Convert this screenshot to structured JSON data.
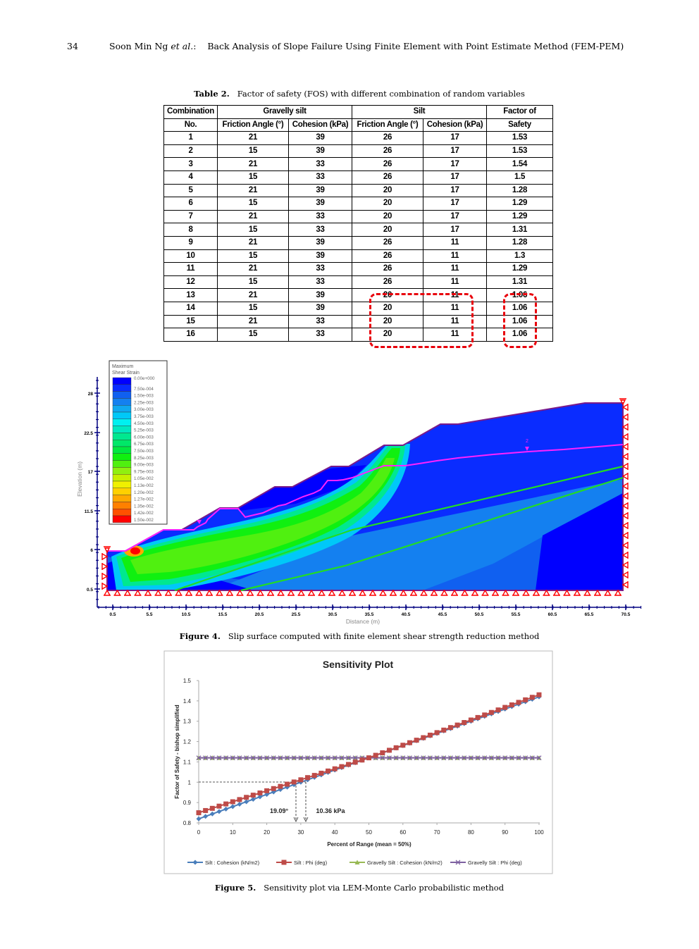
{
  "header": {
    "page_number": "34",
    "authors": "Soon Min Ng",
    "authors_etal": "et al.",
    "colon": ":",
    "title": "Back Analysis of Slope Failure Using Finite Element with Point Estimate Method (FEM-PEM)"
  },
  "table2": {
    "caption_label": "Table 2.",
    "caption_text": "Factor of safety (FOS) with different combination of random variables",
    "headers": {
      "combination": "Combination",
      "no": "No.",
      "gravelly_silt": "Gravelly silt",
      "silt": "Silt",
      "fos_line1": "Factor of",
      "fos_line2": "Safety",
      "friction_angle": "Friction Angle (°)",
      "cohesion": "Cohesion (kPa)"
    },
    "rows": [
      {
        "no": "1",
        "gs_phi": "21",
        "gs_c": "39",
        "s_phi": "26",
        "s_c": "17",
        "fos": "1.53"
      },
      {
        "no": "2",
        "gs_phi": "15",
        "gs_c": "39",
        "s_phi": "26",
        "s_c": "17",
        "fos": "1.53"
      },
      {
        "no": "3",
        "gs_phi": "21",
        "gs_c": "33",
        "s_phi": "26",
        "s_c": "17",
        "fos": "1.54"
      },
      {
        "no": "4",
        "gs_phi": "15",
        "gs_c": "33",
        "s_phi": "26",
        "s_c": "17",
        "fos": "1.5"
      },
      {
        "no": "5",
        "gs_phi": "21",
        "gs_c": "39",
        "s_phi": "20",
        "s_c": "17",
        "fos": "1.28"
      },
      {
        "no": "6",
        "gs_phi": "15",
        "gs_c": "39",
        "s_phi": "20",
        "s_c": "17",
        "fos": "1.29"
      },
      {
        "no": "7",
        "gs_phi": "21",
        "gs_c": "33",
        "s_phi": "20",
        "s_c": "17",
        "fos": "1.29"
      },
      {
        "no": "8",
        "gs_phi": "15",
        "gs_c": "33",
        "s_phi": "20",
        "s_c": "17",
        "fos": "1.31"
      },
      {
        "no": "9",
        "gs_phi": "21",
        "gs_c": "39",
        "s_phi": "26",
        "s_c": "11",
        "fos": "1.28"
      },
      {
        "no": "10",
        "gs_phi": "15",
        "gs_c": "39",
        "s_phi": "26",
        "s_c": "11",
        "fos": "1.3"
      },
      {
        "no": "11",
        "gs_phi": "21",
        "gs_c": "33",
        "s_phi": "26",
        "s_c": "11",
        "fos": "1.29"
      },
      {
        "no": "12",
        "gs_phi": "15",
        "gs_c": "33",
        "s_phi": "26",
        "s_c": "11",
        "fos": "1.31"
      },
      {
        "no": "13",
        "gs_phi": "21",
        "gs_c": "39",
        "s_phi": "20",
        "s_c": "11",
        "fos": "1.06"
      },
      {
        "no": "14",
        "gs_phi": "15",
        "gs_c": "39",
        "s_phi": "20",
        "s_c": "11",
        "fos": "1.06"
      },
      {
        "no": "15",
        "gs_phi": "21",
        "gs_c": "33",
        "s_phi": "20",
        "s_c": "11",
        "fos": "1.06"
      },
      {
        "no": "16",
        "gs_phi": "15",
        "gs_c": "33",
        "s_phi": "20",
        "s_c": "11",
        "fos": "1.06"
      }
    ],
    "highlight_color": "#e8000b"
  },
  "figure4": {
    "caption_label": "Figure 4.",
    "caption_text": "Slip surface computed with finite element shear strength reduction method",
    "legend_title_1": "Maximum",
    "legend_title_2": "Shear Strain",
    "legend": [
      {
        "label": "0.00e+000",
        "color": "#0000ff"
      },
      {
        "label": "7.50e-004",
        "color": "#0a2cff"
      },
      {
        "label": "1.50e-003",
        "color": "#1060f0"
      },
      {
        "label": "2.25e-003",
        "color": "#1480f0"
      },
      {
        "label": "3.00e-003",
        "color": "#10a8f0"
      },
      {
        "label": "3.75e-003",
        "color": "#00c8f8"
      },
      {
        "label": "4.50e-003",
        "color": "#00f0f0"
      },
      {
        "label": "5.25e-003",
        "color": "#00e8c0"
      },
      {
        "label": "6.00e-003",
        "color": "#00e890"
      },
      {
        "label": "6.75e-003",
        "color": "#00e868"
      },
      {
        "label": "7.50e-003",
        "color": "#00e840"
      },
      {
        "label": "8.25e-003",
        "color": "#10f010"
      },
      {
        "label": "9.00e-003",
        "color": "#50f010"
      },
      {
        "label": "9.75e-003",
        "color": "#90f010"
      },
      {
        "label": "1.05e-002",
        "color": "#c8f000"
      },
      {
        "label": "1.13e-002",
        "color": "#f0f000"
      },
      {
        "label": "1.20e-002",
        "color": "#ffd000"
      },
      {
        "label": "1.27e-002",
        "color": "#ffa800"
      },
      {
        "label": "1.35e-002",
        "color": "#ff8000"
      },
      {
        "label": "1.42e-002",
        "color": "#ff5000"
      },
      {
        "label": "1.50e-002",
        "color": "#ff0000"
      }
    ],
    "y_axis_label": "Elevation (m)",
    "x_axis_label": "Distance (m)",
    "y_ticks": [
      "28",
      "22.5",
      "17",
      "11.5",
      "6",
      "0.5"
    ],
    "x_ticks": [
      "0.5",
      "5.5",
      "10.5",
      "15.5",
      "20.5",
      "25.5",
      "30.5",
      "35.5",
      "40.5",
      "45.5",
      "50.5",
      "55.5",
      "60.5",
      "65.5",
      "70.5"
    ],
    "water_table_marker": "2"
  },
  "figure5": {
    "caption_label": "Figure 5.",
    "caption_text": "Sensitivity plot via LEM-Monte Carlo probabilistic method",
    "annotation_phi": "19.09°",
    "annotation_c": "10.36 kPa"
  },
  "chart_data": {
    "type": "line",
    "title": "Sensitivity Plot",
    "xlabel": "Percent of Range  (mean = 50%)",
    "ylabel": "Factor of Safety - bishop simplified",
    "xlim": [
      0,
      100
    ],
    "ylim": [
      0.8,
      1.5
    ],
    "x_ticks": [
      "0",
      "10",
      "20",
      "30",
      "40",
      "50",
      "60",
      "70",
      "80",
      "90",
      "100"
    ],
    "y_ticks": [
      "0.8",
      "0.9",
      "1",
      "1.1",
      "1.2",
      "1.3",
      "1.4",
      "1.5"
    ],
    "grid": false,
    "legend_position": "bottom",
    "x": [
      0,
      50,
      100
    ],
    "series": [
      {
        "name": "Silt : Cohesion (kN/m2)",
        "color": "#4a7ebb",
        "marker": "diamond",
        "values": [
          0.82,
          1.12,
          1.42
        ]
      },
      {
        "name": "Silt : Phi (deg)",
        "color": "#be4b48",
        "marker": "square",
        "values": [
          0.85,
          1.12,
          1.43
        ]
      },
      {
        "name": "Gravelly Silt : Cohesion (kN/m2)",
        "color": "#98b954",
        "marker": "triangle",
        "values": [
          1.12,
          1.12,
          1.12
        ]
      },
      {
        "name": "Gravelly Silt : Phi (deg)",
        "color": "#7d60a0",
        "marker": "x",
        "values": [
          1.12,
          1.12,
          1.12
        ]
      }
    ],
    "annotations": [
      {
        "text": "19.09°",
        "x": 28.5,
        "y": 1.0
      },
      {
        "text": "10.36 kPa",
        "x": 31.5,
        "y": 1.0
      },
      {
        "text": "FOS = 1 reference line",
        "y": 1.0
      }
    ]
  }
}
